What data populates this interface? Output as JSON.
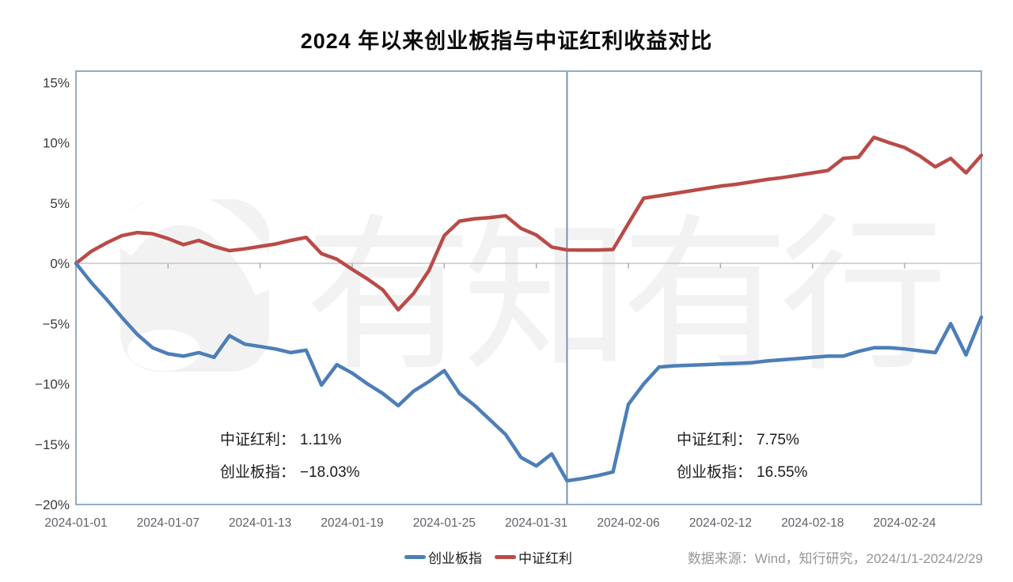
{
  "title": "2024 年以来创业板指与中证红利收益对比",
  "watermark": {
    "text": "有知有行",
    "logo": "youzhiyouxing-logo"
  },
  "annotations": {
    "left": [
      {
        "label": "中证红利：",
        "value": "1.11%"
      },
      {
        "label": "创业板指：",
        "value": "−18.03%"
      }
    ],
    "right": [
      {
        "label": "中证红利：",
        "value": "7.75%"
      },
      {
        "label": "创业板指：",
        "value": "16.55%"
      }
    ]
  },
  "legend": [
    {
      "label": "创业板指",
      "color": "#4d7eb8"
    },
    {
      "label": "中证红利",
      "color": "#b94b48"
    }
  ],
  "source": "数据来源：Wind，知行研究，2024/1/1-2024/2/29",
  "chart_data": {
    "type": "line",
    "title": "2024 年以来创业板指与中证红利收益对比",
    "x": [
      "2024-01-01",
      "2024-01-02",
      "2024-01-03",
      "2024-01-04",
      "2024-01-05",
      "2024-01-06",
      "2024-01-07",
      "2024-01-08",
      "2024-01-09",
      "2024-01-10",
      "2024-01-11",
      "2024-01-12",
      "2024-01-13",
      "2024-01-14",
      "2024-01-15",
      "2024-01-16",
      "2024-01-17",
      "2024-01-18",
      "2024-01-19",
      "2024-01-20",
      "2024-01-21",
      "2024-01-22",
      "2024-01-23",
      "2024-01-24",
      "2024-01-25",
      "2024-01-26",
      "2024-01-27",
      "2024-01-28",
      "2024-01-29",
      "2024-01-30",
      "2024-01-31",
      "2024-02-01",
      "2024-02-02",
      "2024-02-03",
      "2024-02-04",
      "2024-02-05",
      "2024-02-06",
      "2024-02-07",
      "2024-02-08",
      "2024-02-09",
      "2024-02-10",
      "2024-02-11",
      "2024-02-12",
      "2024-02-13",
      "2024-02-14",
      "2024-02-15",
      "2024-02-16",
      "2024-02-17",
      "2024-02-18",
      "2024-02-19",
      "2024-02-20",
      "2024-02-21",
      "2024-02-22",
      "2024-02-23",
      "2024-02-24",
      "2024-02-25",
      "2024-02-26",
      "2024-02-27",
      "2024-02-28",
      "2024-02-29"
    ],
    "x_tick_every": 6,
    "series": [
      {
        "name": "创业板指",
        "name_en": "chinext",
        "color": "#4d7eb8",
        "values": [
          0,
          -1.6,
          -3.0,
          -4.5,
          -5.9,
          -7.0,
          -7.5,
          -7.7,
          -7.4,
          -7.8,
          -6.0,
          -6.7,
          -6.9,
          -7.1,
          -7.4,
          -7.2,
          -10.1,
          -8.4,
          -9.1,
          -10.0,
          -10.8,
          -11.8,
          -10.6,
          -9.8,
          -8.9,
          -10.8,
          -11.8,
          -13.0,
          -14.2,
          -16.1,
          -16.8,
          -15.8,
          -18.03,
          -17.85,
          -17.6,
          -17.3,
          -11.7,
          -10.0,
          -8.6,
          -8.5,
          -8.45,
          -8.4,
          -8.35,
          -8.3,
          -8.25,
          -8.1,
          -8.0,
          -7.9,
          -7.8,
          -7.7,
          -7.7,
          -7.3,
          -7.0,
          -7.0,
          -7.1,
          -7.25,
          -7.4,
          -5.0,
          -7.6,
          -4.47
        ]
      },
      {
        "name": "中证红利",
        "name_en": "dividend",
        "color": "#b94b48",
        "values": [
          0,
          1.0,
          1.7,
          2.3,
          2.55,
          2.45,
          2.05,
          1.55,
          1.9,
          1.4,
          1.05,
          1.2,
          1.4,
          1.6,
          1.9,
          2.15,
          0.8,
          0.35,
          -0.5,
          -1.3,
          -2.2,
          -3.85,
          -2.5,
          -0.6,
          2.3,
          3.5,
          3.7,
          3.8,
          3.95,
          2.9,
          2.35,
          1.35,
          1.11,
          1.1,
          1.1,
          1.15,
          3.3,
          5.4,
          5.6,
          5.8,
          6.0,
          6.2,
          6.4,
          6.55,
          6.75,
          6.95,
          7.1,
          7.3,
          7.5,
          7.7,
          8.7,
          8.8,
          10.45,
          10.0,
          9.6,
          8.9,
          8.0,
          8.7,
          7.5,
          8.95
        ]
      }
    ],
    "y_ticks": [
      {
        "v": 15,
        "label": "15%"
      },
      {
        "v": 10,
        "label": "10%"
      },
      {
        "v": 5,
        "label": "5%"
      },
      {
        "v": 0,
        "label": "0%"
      },
      {
        "v": -5,
        "label": "−5%"
      },
      {
        "v": -10,
        "label": "−10%"
      },
      {
        "v": -15,
        "label": "−15%"
      },
      {
        "v": -20,
        "label": "−20%"
      }
    ],
    "ylim": [
      -20,
      15.93
    ],
    "divider_date": "2024-02-02",
    "divider_index": 32,
    "grid": "zero-line-only",
    "legend_position": "bottom-center",
    "annotation_left_period_end": "2024-02-02",
    "annotation_right_period": "2024-02-02 to 2024-02-29"
  },
  "colors": {
    "plot_border": "#92abc6",
    "divider_line": "#7593b3",
    "zero_line": "#c7c7c7",
    "tick_mark": "#adadad",
    "y_label": "#3a3a3f",
    "x_label": "#5f6368",
    "watermark": "#f2f2f3"
  }
}
